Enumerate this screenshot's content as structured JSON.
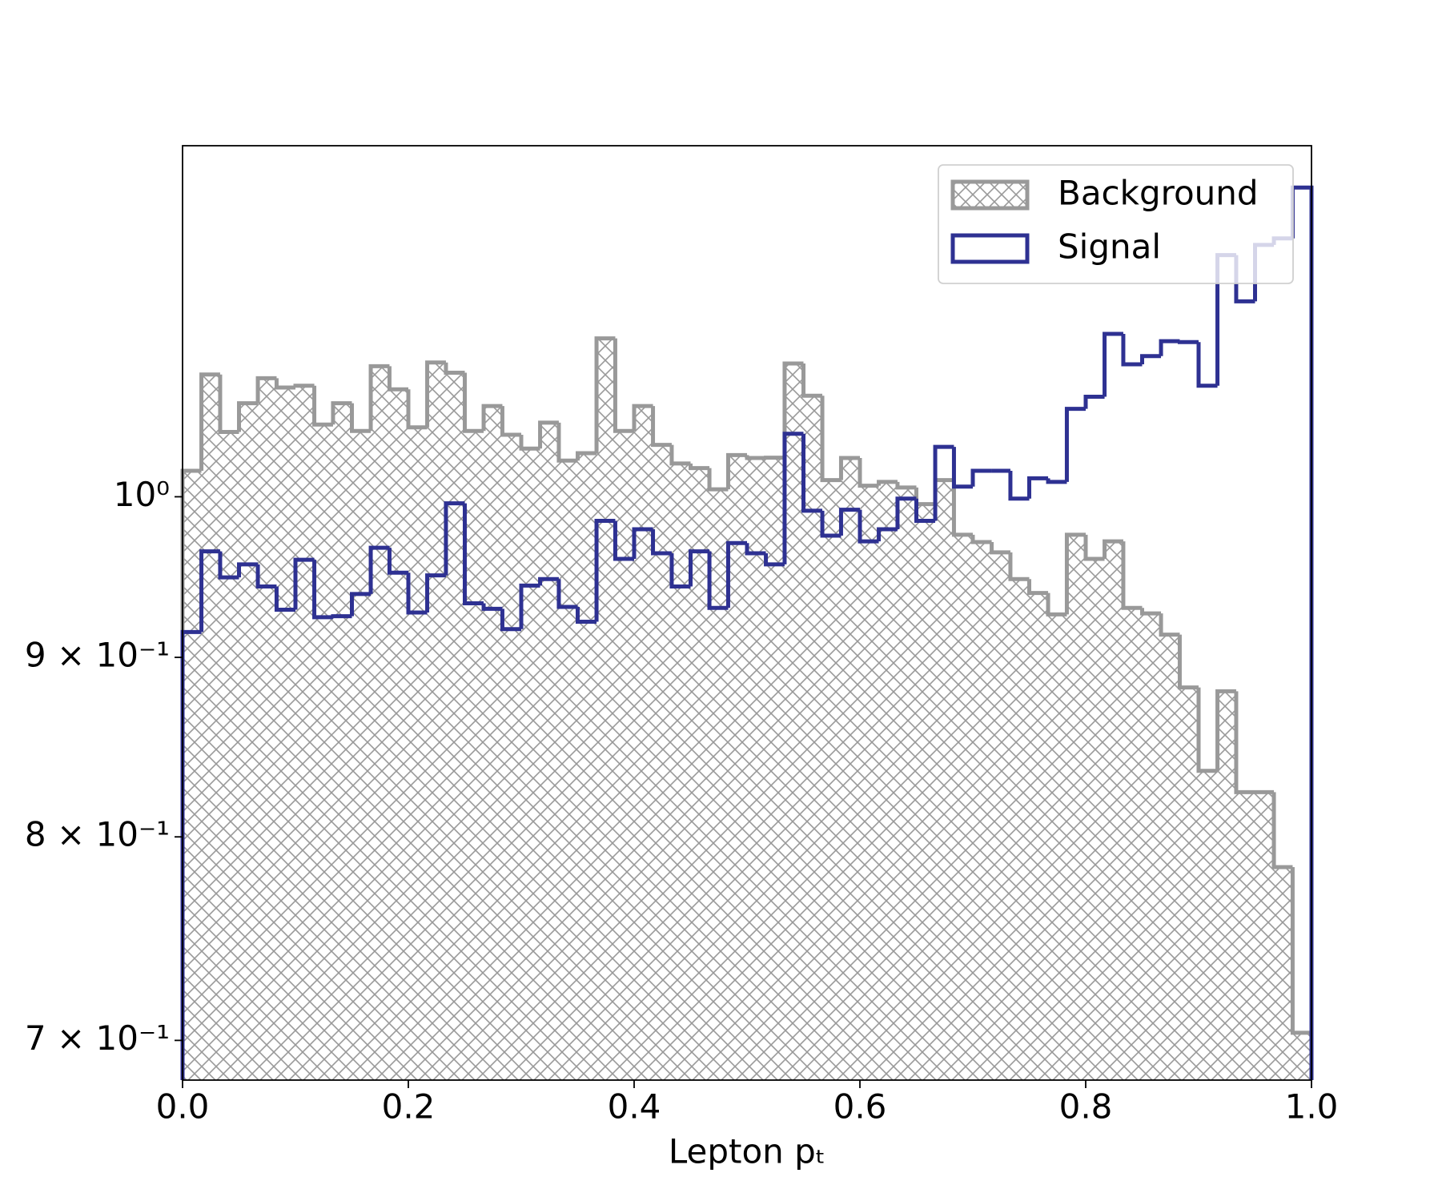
{
  "chart_data": {
    "type": "histogram",
    "x_label": "Lepton pₜ",
    "log_y": true,
    "legend": "upper right",
    "xlim": [
      0,
      1
    ],
    "xticks": [
      {
        "value": 0,
        "label": "0.0"
      },
      0.2,
      0.4,
      0.6,
      0.8,
      {
        "value": 1,
        "label": "1.0"
      }
    ],
    "ylim": [
      0.682,
      1.259
    ],
    "yticks": [
      {
        "value": 0.7,
        "label": "7 × 10⁻¹"
      },
      {
        "value": 0.8,
        "label": "8 × 10⁻¹"
      },
      {
        "value": 0.9,
        "label": "9 × 10⁻¹"
      },
      {
        "value": 1,
        "label": "10⁰"
      }
    ],
    "bins": [
      0,
      0.0167,
      0.0333,
      0.05,
      0.0667,
      0.0833,
      0.1,
      0.1167,
      0.1333,
      0.15,
      0.1667,
      0.1833,
      0.2,
      0.2167,
      0.2333,
      0.25,
      0.2667,
      0.2833,
      0.3,
      0.3167,
      0.3333,
      0.35,
      0.3667,
      0.3833,
      0.4,
      0.4167,
      0.4333,
      0.45,
      0.4667,
      0.4833,
      0.5,
      0.5167,
      0.5333,
      0.55,
      0.5667,
      0.5833,
      0.6,
      0.6167,
      0.6333,
      0.65,
      0.6667,
      0.6833,
      0.7,
      0.7167,
      0.7333,
      0.75,
      0.7667,
      0.7833,
      0.8,
      0.8167,
      0.8333,
      0.85,
      0.8667,
      0.8833,
      0.9,
      0.9167,
      0.9333,
      0.95,
      0.9667,
      0.9833,
      1
    ],
    "series": [
      {
        "name": "Background",
        "color": "#999999",
        "hatch": true,
        "values": [
          1.0172,
          1.0835,
          1.0434,
          1.0633,
          1.0809,
          1.0743,
          1.0756,
          1.0485,
          1.0633,
          1.0441,
          1.0894,
          1.073,
          1.0466,
          1.0921,
          1.0848,
          1.0441,
          1.0613,
          1.0415,
          1.0321,
          1.0498,
          1.024,
          1.029,
          1.1095,
          1.0441,
          1.0613,
          1.0346,
          1.0221,
          1.019,
          1.0049,
          1.0277,
          1.0258,
          1.026,
          1.0914,
          1.0685,
          1.011,
          1.0258,
          1.0073,
          1.0098,
          1.0061,
          0.9952,
          1.011,
          0.9754,
          0.9707,
          0.9642,
          0.9474,
          0.9388,
          0.9257,
          0.9754,
          0.9601,
          0.9712,
          0.9297,
          0.9263,
          0.9135,
          0.8824,
          0.8354,
          0.8802,
          0.8238,
          0.8238,
          0.7843,
          0.7035
        ]
      },
      {
        "name": "Signal",
        "color": "#2e3192",
        "hatch": false,
        "values": [
          0.9151,
          0.9648,
          0.9485,
          0.9566,
          0.9428,
          0.9286,
          0.9595,
          0.924,
          0.9246,
          0.9382,
          0.9671,
          0.9514,
          0.9269,
          0.9497,
          0.9957,
          0.9325,
          0.9291,
          0.9168,
          0.9434,
          0.9474,
          0.9303,
          0.9213,
          0.9843,
          0.9601,
          0.9789,
          0.9636,
          0.9428,
          0.9648,
          0.9297,
          0.9701,
          0.9636,
          0.9566,
          1.0422,
          0.9909,
          0.9748,
          0.9915,
          0.9712,
          0.9789,
          0.9988,
          0.9843,
          1.0333,
          1.0067,
          1.0172,
          1.0172,
          0.9988,
          1.0122,
          1.0098,
          1.0594,
          1.0678,
          1.1128,
          1.0908,
          1.0967,
          1.1075,
          1.1068,
          1.0756,
          1.1718,
          1.1368,
          1.1797,
          1.1847,
          1.2249
        ]
      }
    ]
  }
}
